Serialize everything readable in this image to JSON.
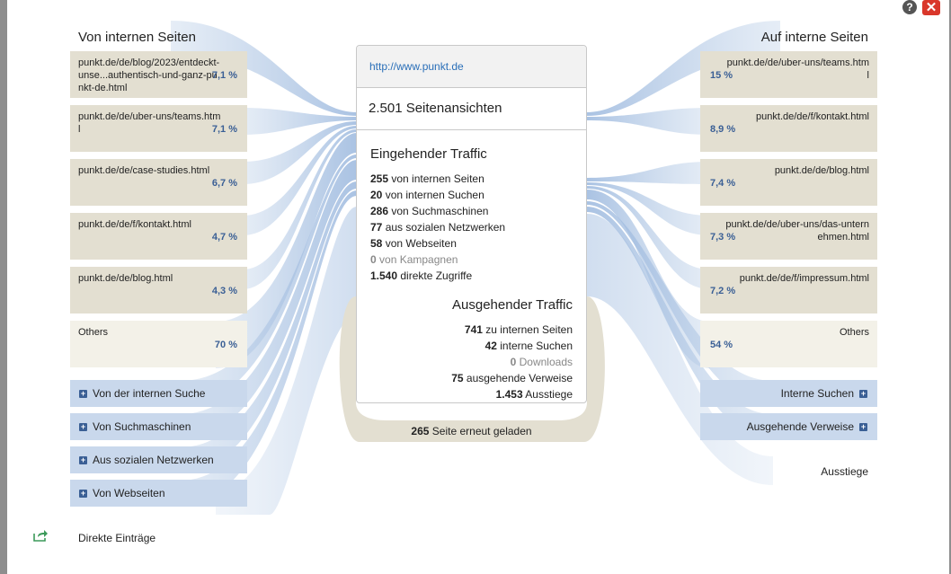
{
  "window": {
    "help_icon": "question-icon",
    "close_icon": "close-icon",
    "help_glyph": "?",
    "close_glyph": "✕"
  },
  "left": {
    "heading": "Von internen Seiten",
    "nodes": [
      {
        "url": "punkt.de/de/blog/2023/entdeckt-unse...authentisch-und-ganz-punkt-de.html",
        "pct": "7,1 %"
      },
      {
        "url": "punkt.de/de/uber-uns/teams.html",
        "pct": "7,1 %"
      },
      {
        "url": "punkt.de/de/case-studies.html",
        "pct": "6,7 %"
      },
      {
        "url": "punkt.de/de/f/kontakt.html",
        "pct": "4,7 %"
      },
      {
        "url": "punkt.de/de/blog.html",
        "pct": "4,3 %"
      },
      {
        "url": "Others",
        "pct": "70 %"
      }
    ],
    "expanders": [
      "Von der internen Suche",
      "Von Suchmaschinen",
      "Aus sozialen Netzwerken",
      "Von Webseiten"
    ],
    "direct_entries": "Direkte Einträge"
  },
  "right": {
    "heading": "Auf interne Seiten",
    "nodes": [
      {
        "url": "punkt.de/de/uber-uns/teams.html",
        "pct": "15 %"
      },
      {
        "url": "punkt.de/de/f/kontakt.html",
        "pct": "8,9 %"
      },
      {
        "url": "punkt.de/de/blog.html",
        "pct": "7,4 %"
      },
      {
        "url": "punkt.de/de/uber-uns/das-unternehmen.html",
        "pct": "7,3 %"
      },
      {
        "url": "punkt.de/de/f/impressum.html",
        "pct": "7,2 %"
      },
      {
        "url": "Others",
        "pct": "54 %"
      }
    ],
    "expanders": [
      "Interne Suchen",
      "Ausgehende Verweise"
    ],
    "exits": "Ausstiege"
  },
  "center": {
    "url": "http://www.punkt.de",
    "views": "2.501 Seitenansichten",
    "incoming_title": "Eingehender Traffic",
    "incoming": [
      {
        "value": "255",
        "label": "von internen Seiten",
        "muted": false
      },
      {
        "value": "20",
        "label": "von internen Suchen",
        "muted": false
      },
      {
        "value": "286",
        "label": "von Suchmaschinen",
        "muted": false
      },
      {
        "value": "77",
        "label": "aus sozialen Netzwerken",
        "muted": false
      },
      {
        "value": "58",
        "label": "von Webseiten",
        "muted": false
      },
      {
        "value": "0",
        "label": "von Kampagnen",
        "muted": true
      },
      {
        "value": "1.540",
        "label": "direkte Zugriffe",
        "muted": false
      }
    ],
    "outgoing_title": "Ausgehender Traffic",
    "outgoing": [
      {
        "value": "741",
        "label": "zu internen Seiten",
        "muted": false
      },
      {
        "value": "42",
        "label": "interne Suchen",
        "muted": false
      },
      {
        "value": "0",
        "label": "Downloads",
        "muted": true
      },
      {
        "value": "75",
        "label": "ausgehende Verweise",
        "muted": false
      },
      {
        "value": "1.453",
        "label": "Ausstiege",
        "muted": false
      }
    ],
    "reload_value": "265",
    "reload_label": "Seite erneut geladen"
  },
  "colors": {
    "node_bg": "#e3dfd1",
    "others_bg": "#f3f1e8",
    "expander_bg": "#c9d8ec",
    "percent": "#3a5f95",
    "link": "#2a6fb8",
    "close": "#d9372b"
  }
}
